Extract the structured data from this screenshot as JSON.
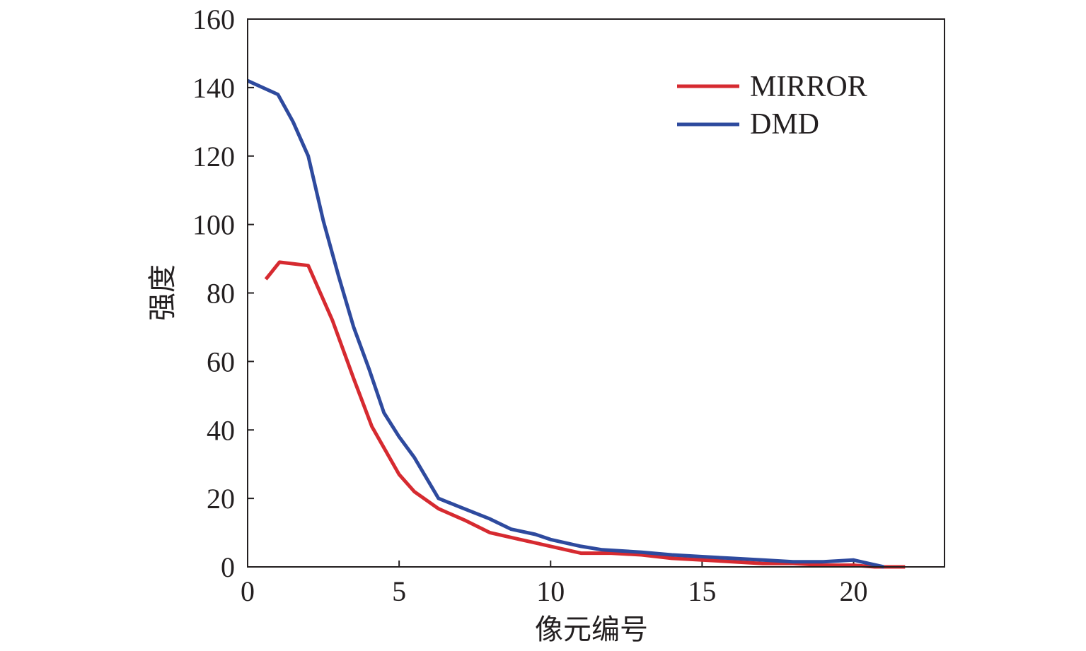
{
  "chart_data": {
    "type": "line",
    "xlabel": "像元编号",
    "ylabel": "强度",
    "xlim": [
      0,
      23
    ],
    "ylim": [
      0,
      160
    ],
    "xticks": [
      0,
      5,
      10,
      15,
      20
    ],
    "yticks": [
      0,
      20,
      40,
      60,
      80,
      100,
      120,
      140,
      160
    ],
    "grid": false,
    "legend_position": "top-right",
    "series": [
      {
        "name": "MIRROR",
        "color": "#d62a30",
        "x": [
          0.6,
          1.05,
          2.0,
          2.8,
          3.5,
          4.1,
          5.0,
          5.5,
          6.3,
          7.2,
          8.0,
          9.0,
          10.0,
          11.0,
          12.0,
          13.0,
          14.0,
          15.0,
          16.0,
          17.0,
          18.0,
          19.0,
          20.0,
          20.7,
          21.7
        ],
        "y": [
          84,
          89,
          88,
          72,
          55,
          41,
          27,
          22,
          17,
          13.5,
          10,
          8,
          6,
          4,
          4,
          3.5,
          2.5,
          2,
          1.5,
          1,
          1,
          0.5,
          0.5,
          0,
          0
        ]
      },
      {
        "name": "DMD",
        "color": "#2e4a9e",
        "x": [
          0,
          1.0,
          1.5,
          2.0,
          2.5,
          3.0,
          3.5,
          4.0,
          4.5,
          5.0,
          5.5,
          6.3,
          7.0,
          8.0,
          8.7,
          9.5,
          10.0,
          11.0,
          11.7,
          13.0,
          14.0,
          15.0,
          16.0,
          17.0,
          18.0,
          19.0,
          20.0,
          20.5,
          21.0
        ],
        "y": [
          142,
          138,
          130,
          120,
          101,
          85,
          70,
          58,
          45,
          38,
          32,
          20,
          17.5,
          14,
          11,
          9.5,
          8,
          6,
          5,
          4.3,
          3.5,
          3,
          2.5,
          2,
          1.5,
          1.5,
          2,
          1,
          0
        ]
      }
    ]
  }
}
